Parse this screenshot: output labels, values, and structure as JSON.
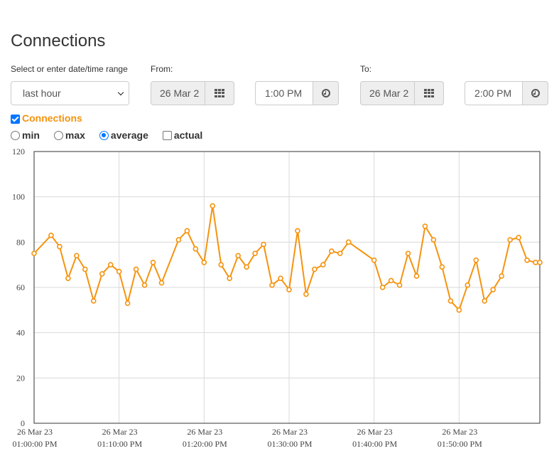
{
  "page": {
    "title": "Connections"
  },
  "range": {
    "label": "Select or enter date/time range",
    "selected": "last hour"
  },
  "from": {
    "label": "From:",
    "date": "26 Mar 2",
    "time": "1:00 PM",
    "date_icon": "calendar-grid-icon",
    "time_icon": "clock-icon"
  },
  "to": {
    "label": "To:",
    "date": "26 Mar 2",
    "time": "2:00 PM",
    "date_icon": "calendar-grid-icon",
    "time_icon": "clock-icon"
  },
  "series_toggle": {
    "label": "Connections",
    "checked": true
  },
  "aggregation": {
    "options": [
      {
        "label": "min",
        "type": "radio",
        "selected": false
      },
      {
        "label": "max",
        "type": "radio",
        "selected": false
      },
      {
        "label": "average",
        "type": "radio",
        "selected": true
      },
      {
        "label": "actual",
        "type": "checkbox",
        "selected": false
      }
    ]
  },
  "colors": {
    "series": "#f5930f",
    "grid": "#d9d9d9",
    "axis": "#333333"
  },
  "chart_data": {
    "type": "line",
    "title": "",
    "xlabel": "",
    "ylabel": "",
    "ylim": [
      0,
      120
    ],
    "yticks": [
      0,
      20,
      40,
      60,
      80,
      100,
      120
    ],
    "xlim_minutes": [
      0,
      59.5
    ],
    "xticks": [
      {
        "minute": 0,
        "date": "26 Mar 23",
        "time": "01:00:00 PM"
      },
      {
        "minute": 10,
        "date": "26 Mar 23",
        "time": "01:10:00 PM"
      },
      {
        "minute": 20,
        "date": "26 Mar 23",
        "time": "01:20:00 PM"
      },
      {
        "minute": 30,
        "date": "26 Mar 23",
        "time": "01:30:00 PM"
      },
      {
        "minute": 40,
        "date": "26 Mar 23",
        "time": "01:40:00 PM"
      },
      {
        "minute": 50,
        "date": "26 Mar 23",
        "time": "01:50:00 PM"
      }
    ],
    "grid": true,
    "series": [
      {
        "color": "#f5930f",
        "x": [
          0,
          2,
          3,
          4,
          5,
          6,
          7,
          8,
          9,
          10,
          11,
          12,
          13,
          14,
          15,
          17,
          18,
          19,
          20,
          21,
          22,
          23,
          24,
          25,
          26,
          27,
          28,
          29,
          30,
          31,
          32,
          33,
          34,
          35,
          36,
          37,
          40,
          41,
          42,
          43,
          44,
          45,
          46,
          47,
          48,
          49,
          50,
          51,
          52,
          53,
          54,
          55,
          56,
          57,
          58,
          59,
          59.5
        ],
        "y": [
          75,
          83,
          78,
          64,
          74,
          68,
          54,
          66,
          70,
          67,
          53,
          68,
          61,
          71,
          62,
          81,
          85,
          77,
          71,
          96,
          70,
          64,
          74,
          69,
          75,
          79,
          61,
          64,
          59,
          85,
          57,
          68,
          70,
          76,
          75,
          80,
          72,
          60,
          63,
          61,
          75,
          65,
          87,
          81,
          69,
          54,
          50,
          61,
          72,
          54,
          59,
          65,
          81,
          82,
          72,
          71,
          71
        ]
      }
    ]
  }
}
